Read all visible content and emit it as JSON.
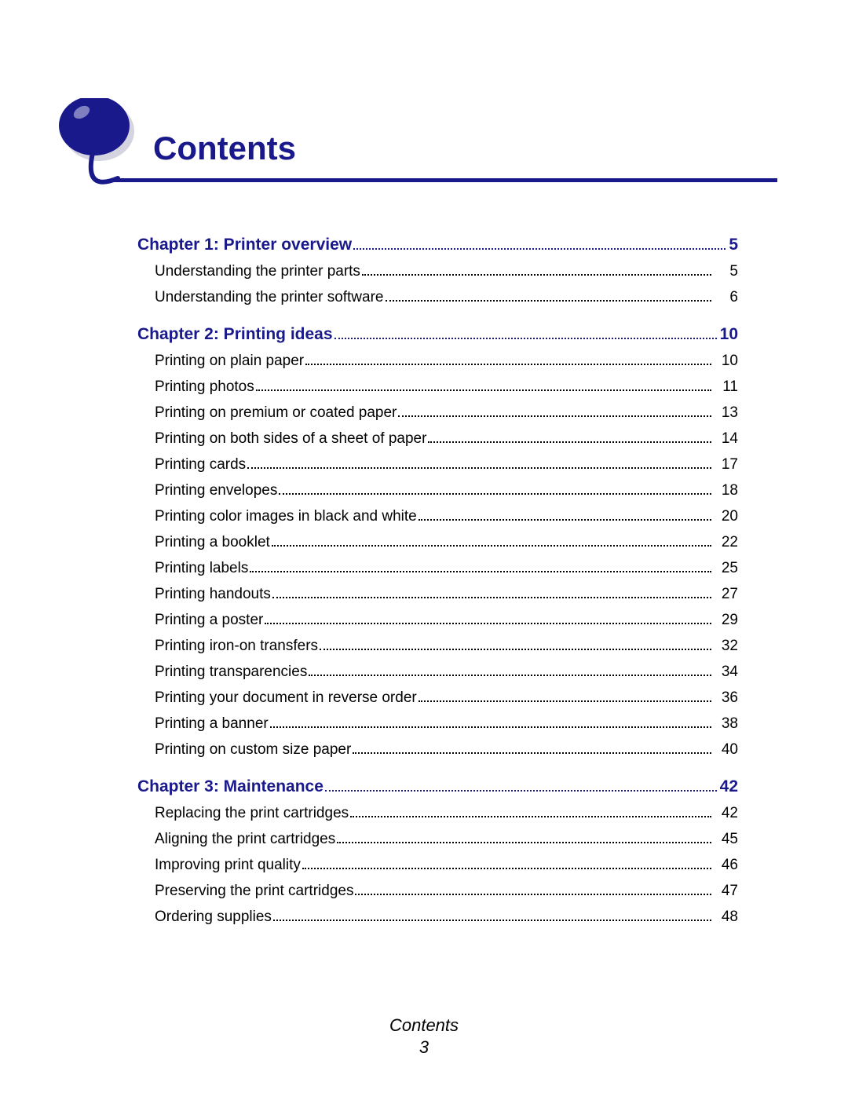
{
  "colors": {
    "brand": "#19198c",
    "text": "#000000",
    "bg": "#ffffff"
  },
  "page_title": "Contents",
  "footer": {
    "label": "Contents",
    "page": "3"
  },
  "chapters": [
    {
      "title": "Chapter 1:  Printer overview",
      "page": "5",
      "entries": [
        {
          "title": "Understanding the printer parts",
          "page": "5"
        },
        {
          "title": "Understanding the printer software",
          "page": "6"
        }
      ]
    },
    {
      "title": "Chapter 2:  Printing ideas",
      "page": "10",
      "entries": [
        {
          "title": "Printing on plain paper",
          "page": "10"
        },
        {
          "title": "Printing photos",
          "page": "11"
        },
        {
          "title": "Printing on premium or coated paper",
          "page": "13"
        },
        {
          "title": "Printing on both sides of a sheet of paper",
          "page": "14"
        },
        {
          "title": "Printing cards",
          "page": "17"
        },
        {
          "title": "Printing envelopes",
          "page": "18"
        },
        {
          "title": "Printing color images in black and white",
          "page": "20"
        },
        {
          "title": "Printing a booklet",
          "page": "22"
        },
        {
          "title": "Printing labels",
          "page": "25"
        },
        {
          "title": "Printing handouts",
          "page": "27"
        },
        {
          "title": "Printing a poster",
          "page": "29"
        },
        {
          "title": "Printing iron-on transfers",
          "page": "32"
        },
        {
          "title": "Printing transparencies",
          "page": "34"
        },
        {
          "title": "Printing your document in reverse order",
          "page": "36"
        },
        {
          "title": "Printing a banner",
          "page": "38"
        },
        {
          "title": "Printing on custom size paper",
          "page": "40"
        }
      ]
    },
    {
      "title": "Chapter 3:  Maintenance",
      "page": "42",
      "entries": [
        {
          "title": "Replacing the print cartridges",
          "page": "42"
        },
        {
          "title": "Aligning the print cartridges",
          "page": "45"
        },
        {
          "title": "Improving print quality",
          "page": "46"
        },
        {
          "title": "Preserving the print cartridges",
          "page": "47"
        },
        {
          "title": "Ordering supplies",
          "page": "48"
        }
      ]
    }
  ]
}
